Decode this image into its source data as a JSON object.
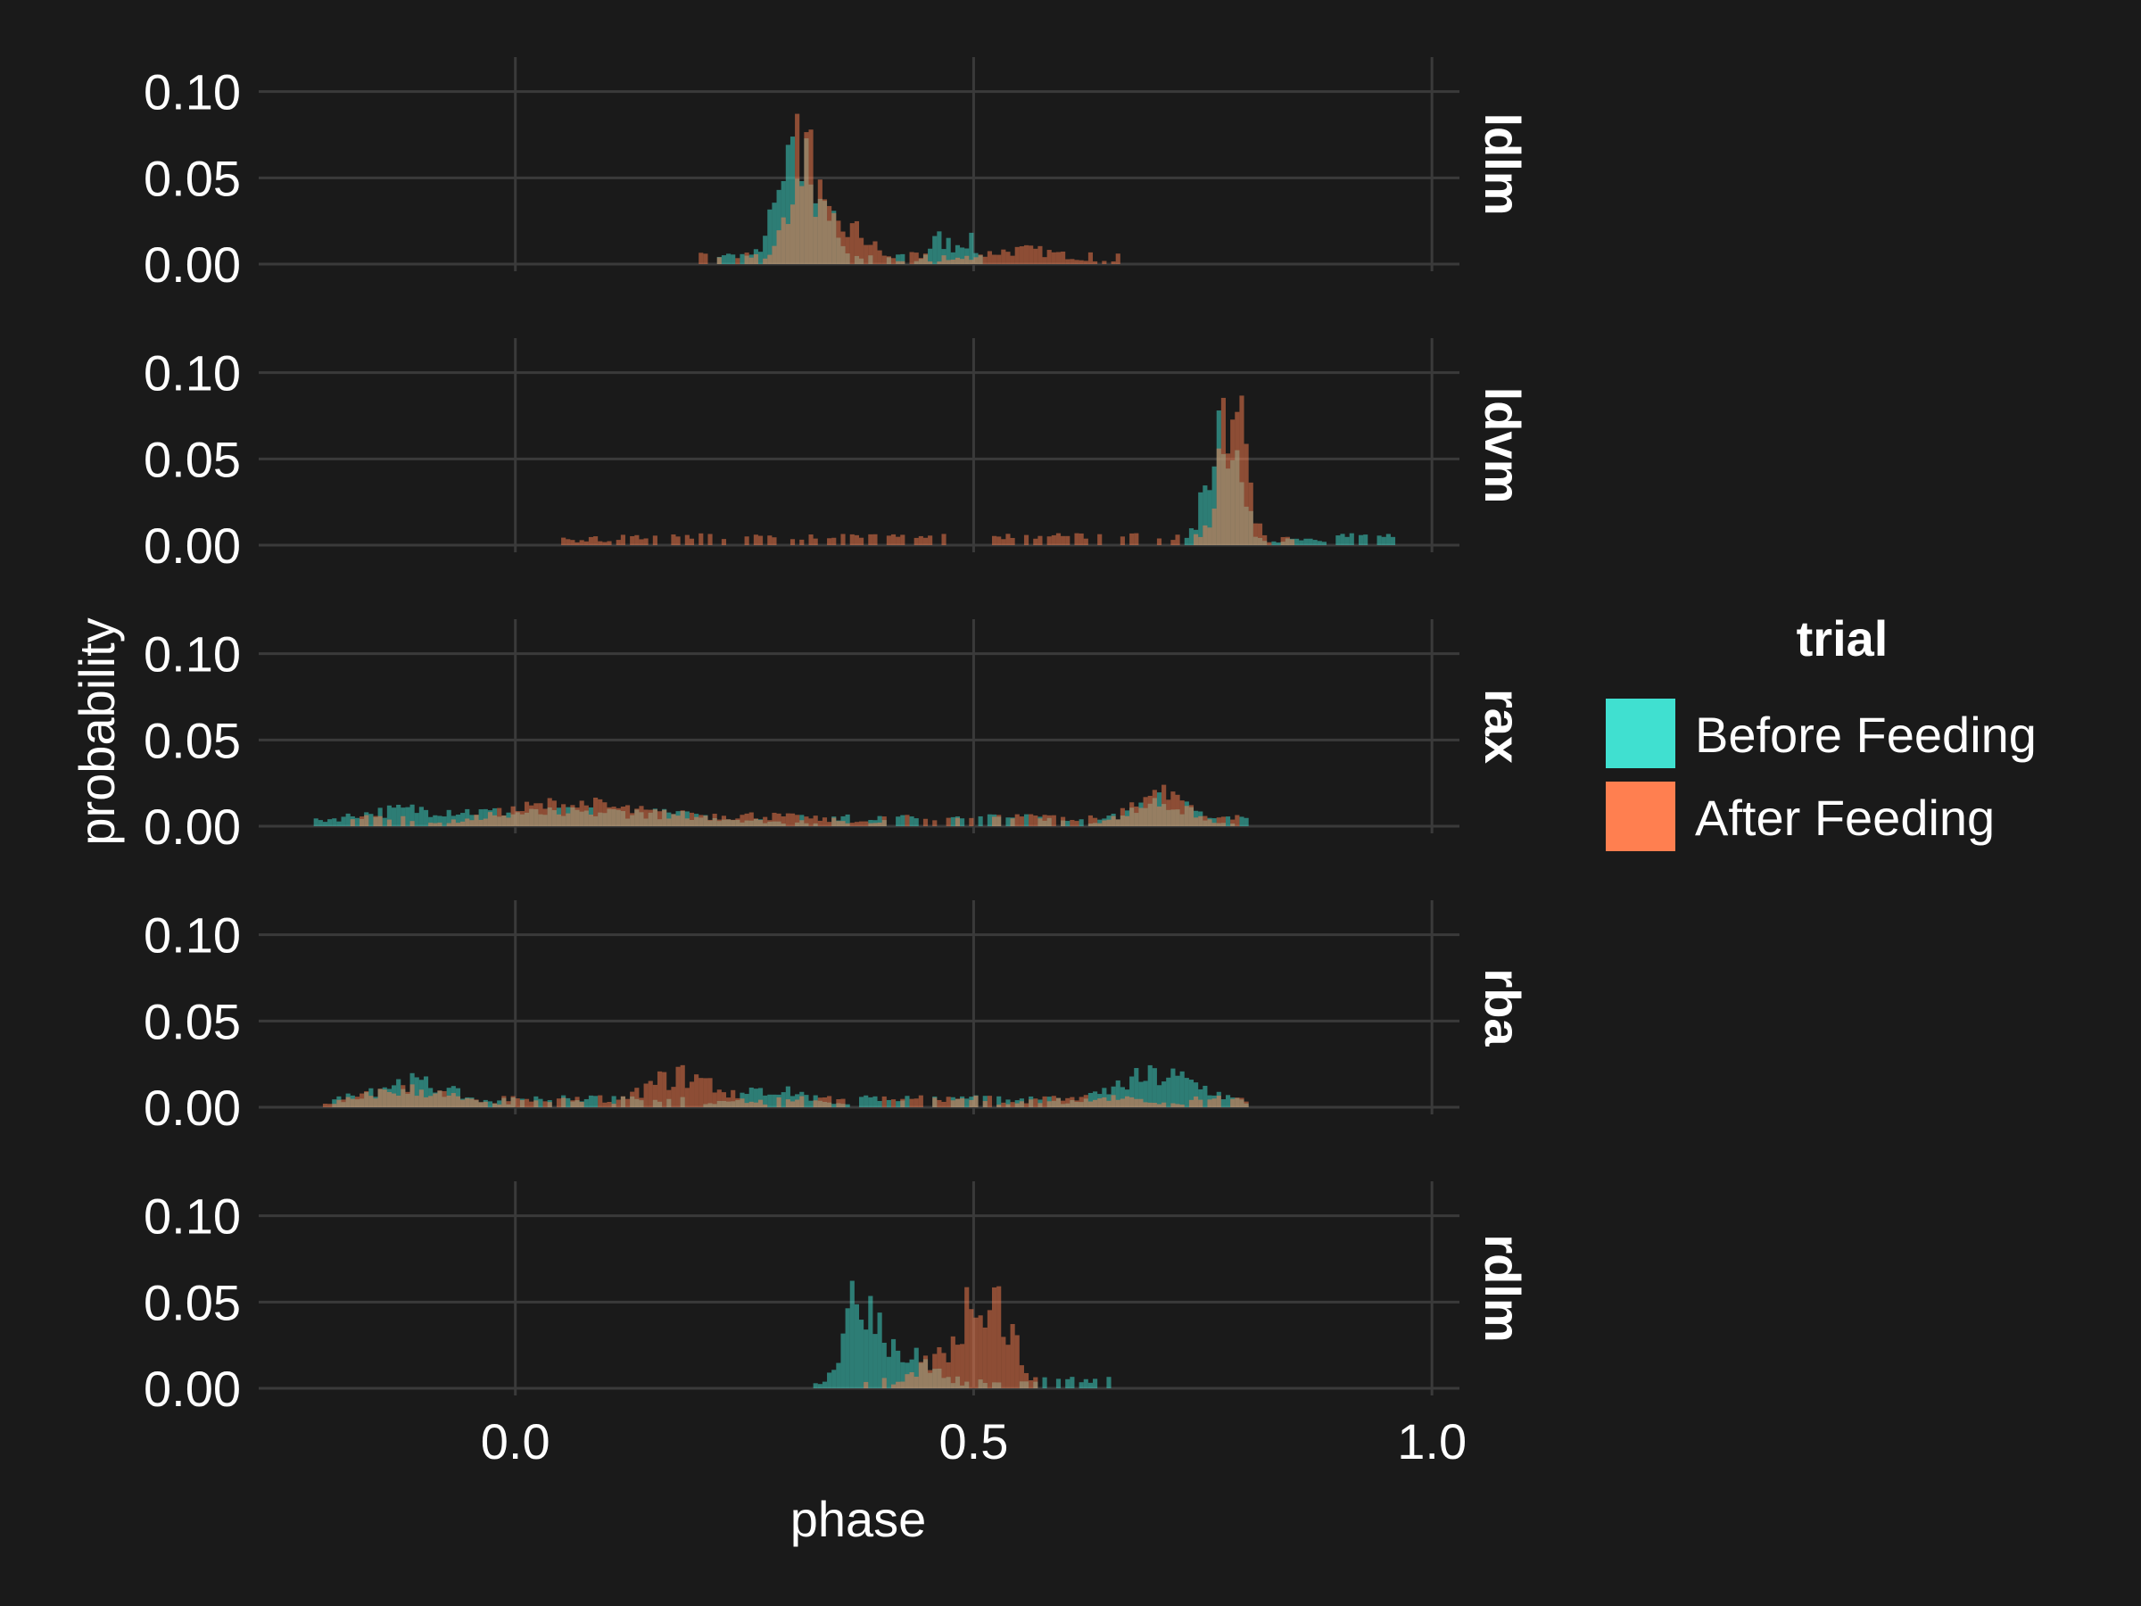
{
  "chart_data": {
    "type": "histogram",
    "layout": "facet-rows",
    "xlabel": "phase",
    "ylabel": "probability",
    "xlim": [
      -0.28,
      1.03
    ],
    "ylim": [
      0,
      0.12
    ],
    "x_ticks": [
      0.0,
      0.5,
      1.0
    ],
    "x_tick_labels": [
      "0.0",
      "0.5",
      "1.0"
    ],
    "y_ticks": [
      0.0,
      0.05,
      0.1
    ],
    "y_tick_labels": [
      "0.00",
      "0.05",
      "0.10"
    ],
    "bin_width": 0.005,
    "grid": true,
    "legend": {
      "title": "trial",
      "placement": "right",
      "entries": [
        {
          "label": "Before Feeding",
          "color": "#40e0d0"
        },
        {
          "label": "After Feeding",
          "color": "#ff7f50"
        }
      ]
    },
    "colors": {
      "background": "#1a1a1a",
      "before": "#40e0d0",
      "after": "#ff7f50",
      "grid": "#3a3a3a"
    },
    "facets": [
      {
        "label": "ldlm",
        "series": [
          {
            "name": "Before Feeding",
            "peaks": [
              [
                0.3,
                0.05,
                0.02
              ],
              [
                0.33,
                0.03,
                0.015
              ],
              [
                0.46,
                0.014,
                0.012
              ],
              [
                0.49,
                0.014,
                0.01
              ]
            ],
            "range": [
              0.22,
              0.52
            ]
          },
          {
            "name": "After Feeding",
            "peaks": [
              [
                0.31,
                0.065,
                0.015
              ],
              [
                0.36,
                0.02,
                0.025
              ],
              [
                0.55,
                0.008,
                0.05
              ]
            ],
            "range": [
              0.2,
              0.66
            ]
          }
        ]
      },
      {
        "label": "ldvm",
        "series": [
          {
            "name": "Before Feeding",
            "peaks": [
              [
                0.77,
                0.075,
                0.016
              ],
              [
                0.85,
                0.003,
                0.03
              ]
            ],
            "range": [
              0.72,
              0.96
            ]
          },
          {
            "name": "After Feeding",
            "peaks": [
              [
                0.78,
                0.09,
                0.014
              ],
              [
                0.08,
                0.004,
                0.015
              ]
            ],
            "range": [
              0.04,
              0.86
            ]
          }
        ]
      },
      {
        "label": "rax",
        "series": [
          {
            "name": "Before Feeding",
            "peaks": [
              [
                -0.12,
                0.008,
                0.07
              ],
              [
                0.1,
                0.008,
                0.12
              ],
              [
                0.7,
                0.015,
                0.035
              ]
            ],
            "range": [
              -0.22,
              0.8
            ]
          },
          {
            "name": "After Feeding",
            "peaks": [
              [
                0.05,
                0.012,
                0.07
              ],
              [
                0.25,
                0.006,
                0.09
              ],
              [
                0.7,
                0.018,
                0.03
              ]
            ],
            "range": [
              -0.18,
              0.8
            ]
          }
        ]
      },
      {
        "label": "rba",
        "series": [
          {
            "name": "Before Feeding",
            "peaks": [
              [
                -0.12,
                0.014,
                0.05
              ],
              [
                0.28,
                0.01,
                0.04
              ],
              [
                0.7,
                0.018,
                0.05
              ]
            ],
            "range": [
              -0.2,
              0.8
            ]
          },
          {
            "name": "After Feeding",
            "peaks": [
              [
                -0.12,
                0.01,
                0.05
              ],
              [
                0.18,
                0.018,
                0.04
              ],
              [
                0.62,
                0.006,
                0.06
              ]
            ],
            "range": [
              -0.21,
              0.8
            ]
          }
        ]
      },
      {
        "label": "rdlm",
        "series": [
          {
            "name": "Before Feeding",
            "peaks": [
              [
                0.38,
                0.055,
                0.022
              ],
              [
                0.44,
                0.015,
                0.02
              ]
            ],
            "range": [
              0.3,
              0.66
            ]
          },
          {
            "name": "After Feeding",
            "peaks": [
              [
                0.51,
                0.06,
                0.025
              ],
              [
                0.45,
                0.012,
                0.02
              ]
            ],
            "range": [
              0.38,
              0.57
            ]
          }
        ]
      }
    ]
  }
}
